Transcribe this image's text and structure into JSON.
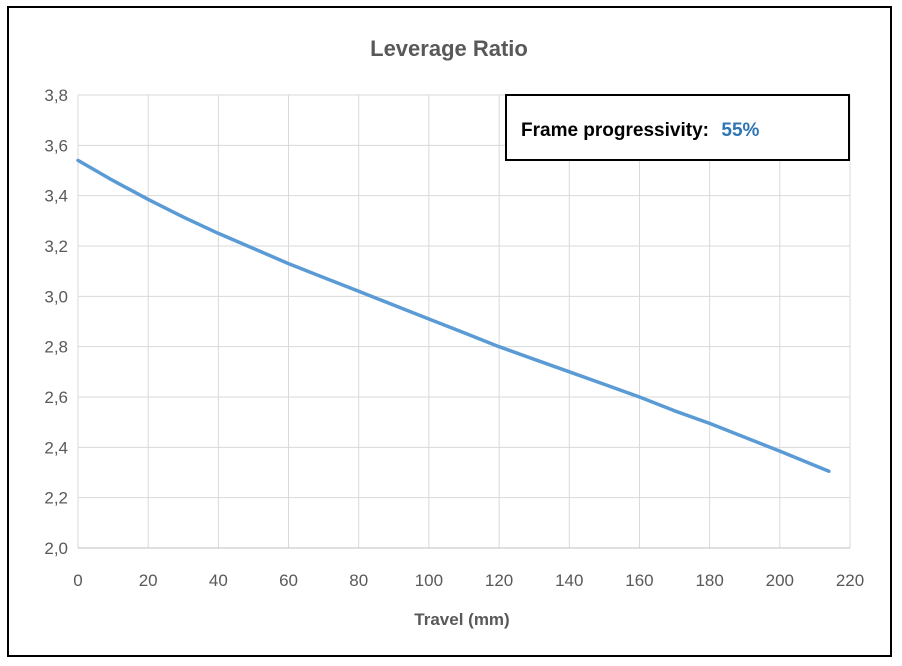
{
  "chart_data": {
    "type": "line",
    "title": "Leverage Ratio",
    "xlabel": "Travel (mm)",
    "ylabel": "",
    "xlim": [
      0,
      220
    ],
    "ylim": [
      2.0,
      3.8
    ],
    "x_ticks": [
      "0",
      "20",
      "40",
      "60",
      "80",
      "100",
      "120",
      "140",
      "160",
      "180",
      "200",
      "220"
    ],
    "y_ticks": [
      "2,0",
      "2,2",
      "2,4",
      "2,6",
      "2,8",
      "3,0",
      "3,2",
      "3,4",
      "3,6",
      "3,8"
    ],
    "grid": true,
    "series": [
      {
        "color": "#5b9bd5",
        "x": [
          0,
          10,
          20,
          30,
          40,
          50,
          60,
          70,
          80,
          90,
          100,
          110,
          120,
          130,
          140,
          150,
          160,
          170,
          180,
          190,
          200,
          214
        ],
        "y": [
          3.54,
          3.46,
          3.385,
          3.315,
          3.25,
          3.19,
          3.13,
          3.075,
          3.02,
          2.965,
          2.91,
          2.855,
          2.8,
          2.75,
          2.7,
          2.65,
          2.6,
          2.545,
          2.495,
          2.44,
          2.385,
          2.305
        ]
      }
    ],
    "annotation": {
      "label": "Frame progressivity:",
      "value": "55%",
      "value_color": "#2e75b6"
    }
  }
}
